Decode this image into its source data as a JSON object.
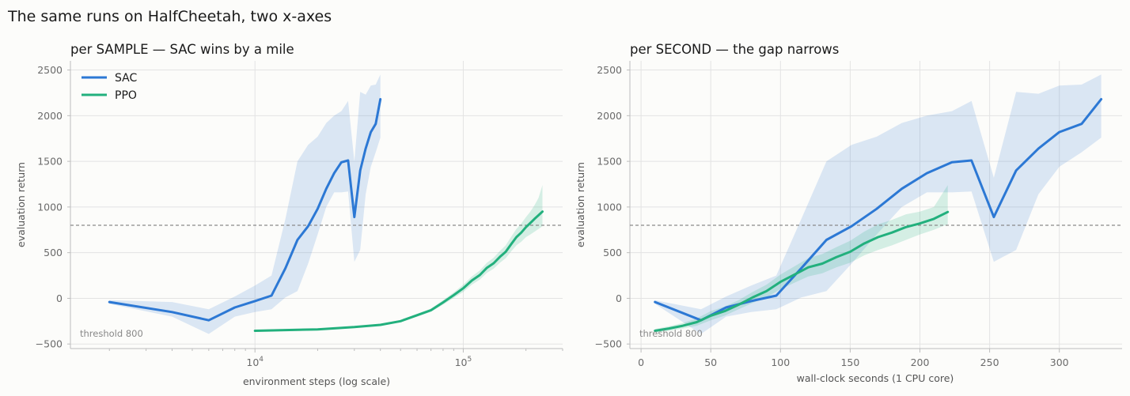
{
  "suptitle": "The same runs on HalfCheetah, two x-axes",
  "colors": {
    "sac": "#2c78d4",
    "ppo": "#22b07d",
    "threshold": "#8a8a8a"
  },
  "chart_data": [
    {
      "type": "line",
      "title": "per SAMPLE  —  SAC wins by a mile",
      "xlabel": "environment steps (log scale)",
      "ylabel": "evaluation return",
      "xscale": "log",
      "xlim": [
        1300,
        300000
      ],
      "ylim": [
        -550,
        2600
      ],
      "xticks": [
        10000,
        100000
      ],
      "xtick_labels": [
        {
          "base": "10",
          "exp": "4"
        },
        {
          "base": "10",
          "exp": "5"
        }
      ],
      "yticks": [
        -500,
        0,
        500,
        1000,
        1500,
        2000,
        2500
      ],
      "threshold": {
        "value": 800,
        "label": "threshold 800"
      },
      "legend": {
        "position": "top-left",
        "entries": [
          "SAC",
          "PPO"
        ]
      },
      "series": [
        {
          "name": "SAC",
          "x": [
            2000,
            4000,
            6000,
            8000,
            10000,
            12000,
            14000,
            16000,
            18000,
            20000,
            22000,
            24000,
            26000,
            28000,
            30000,
            32000,
            34000,
            36000,
            38000,
            40000
          ],
          "y": [
            -40,
            -150,
            -240,
            -100,
            -30,
            30,
            330,
            640,
            790,
            980,
            1200,
            1370,
            1490,
            1510,
            890,
            1400,
            1640,
            1820,
            1910,
            2180
          ],
          "lower": [
            -60,
            -200,
            -390,
            -200,
            -150,
            -120,
            10,
            80,
            380,
            700,
            1000,
            1160,
            1160,
            1170,
            400,
            530,
            1140,
            1440,
            1600,
            1760
          ],
          "upper": [
            -20,
            -40,
            -120,
            20,
            140,
            250,
            870,
            1500,
            1680,
            1770,
            1920,
            2000,
            2050,
            2160,
            1500,
            2260,
            2230,
            2330,
            2340,
            2450
          ]
        },
        {
          "name": "PPO",
          "x": [
            10000,
            20000,
            30000,
            40000,
            50000,
            60000,
            70000,
            80000,
            90000,
            100000,
            110000,
            120000,
            130000,
            140000,
            150000,
            160000,
            170000,
            180000,
            190000,
            200000,
            210000,
            220000,
            230000,
            240000
          ],
          "y": [
            -355,
            -340,
            -315,
            -290,
            -250,
            -185,
            -130,
            -45,
            35,
            110,
            195,
            255,
            335,
            385,
            455,
            510,
            595,
            670,
            720,
            780,
            825,
            870,
            910,
            950
          ],
          "lower": [
            -365,
            -350,
            -325,
            -300,
            -262,
            -200,
            -148,
            -70,
            5,
            70,
            150,
            205,
            280,
            325,
            390,
            440,
            515,
            580,
            620,
            670,
            700,
            730,
            760,
            790
          ],
          "upper": [
            -345,
            -330,
            -305,
            -280,
            -238,
            -170,
            -112,
            -20,
            65,
            150,
            240,
            305,
            390,
            445,
            520,
            580,
            675,
            760,
            820,
            890,
            950,
            1020,
            1100,
            1240
          ]
        }
      ]
    },
    {
      "type": "line",
      "title": "per SECOND  —  the gap narrows",
      "xlabel": "wall-clock seconds (1 CPU core)",
      "ylabel": "evaluation return",
      "xscale": "linear",
      "xlim": [
        -8,
        345
      ],
      "ylim": [
        -550,
        2600
      ],
      "xticks": [
        0,
        50,
        100,
        150,
        200,
        250,
        300
      ],
      "yticks": [
        -500,
        0,
        500,
        1000,
        1500,
        2000,
        2500
      ],
      "threshold": {
        "value": 800,
        "label": "threshold 800"
      },
      "series": [
        {
          "name": "SAC",
          "x": [
            10,
            43,
            61,
            79,
            97,
            115,
            133,
            151,
            169,
            187,
            205,
            223,
            237,
            253,
            269,
            285,
            300,
            316,
            330
          ],
          "y": [
            -40,
            -240,
            -100,
            -30,
            30,
            330,
            640,
            790,
            980,
            1200,
            1370,
            1490,
            1510,
            890,
            1400,
            1640,
            1820,
            1910,
            2180
          ],
          "lower": [
            -60,
            -390,
            -200,
            -150,
            -120,
            10,
            80,
            380,
            700,
            1000,
            1160,
            1160,
            1170,
            400,
            530,
            1140,
            1440,
            1600,
            1760
          ],
          "upper": [
            -20,
            -120,
            20,
            140,
            250,
            870,
            1500,
            1680,
            1770,
            1920,
            2000,
            2050,
            2160,
            1320,
            2260,
            2240,
            2330,
            2340,
            2450
          ]
        },
        {
          "name": "PPO",
          "x": [
            10,
            20,
            30,
            40,
            50,
            60,
            70,
            80,
            90,
            100,
            110,
            120,
            130,
            140,
            150,
            160,
            170,
            180,
            190,
            200,
            210,
            220
          ],
          "y": [
            -355,
            -330,
            -300,
            -260,
            -190,
            -140,
            -70,
            10,
            80,
            180,
            260,
            340,
            380,
            450,
            510,
            600,
            670,
            720,
            780,
            820,
            870,
            945
          ],
          "lower": [
            -375,
            -355,
            -330,
            -300,
            -240,
            -190,
            -120,
            -50,
            10,
            100,
            170,
            240,
            275,
            340,
            390,
            470,
            530,
            580,
            640,
            700,
            750,
            810
          ],
          "upper": [
            -335,
            -305,
            -270,
            -220,
            -140,
            -90,
            -20,
            70,
            150,
            260,
            350,
            440,
            485,
            560,
            630,
            730,
            810,
            860,
            920,
            950,
            1000,
            1240
          ]
        }
      ]
    }
  ]
}
